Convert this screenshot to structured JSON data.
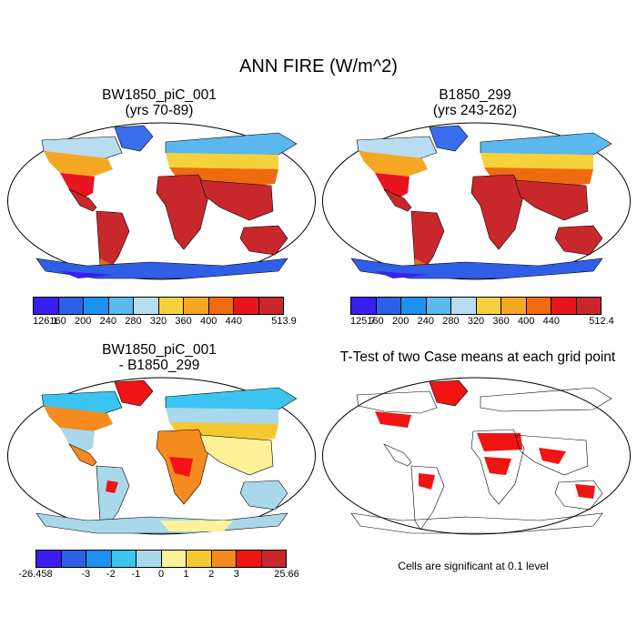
{
  "title": "ANN FIRE (W/m^2)",
  "panels": {
    "top_left": {
      "title_line1": "BW1850_piC_001",
      "title_line2": "(yrs 70-89)"
    },
    "top_right": {
      "title_line1": "B1850_299",
      "title_line2": "(yrs 243-262)"
    },
    "bottom_left": {
      "title_line1": "BW1850_piC_001",
      "title_line2": "- B1850_299"
    },
    "bottom_right": {
      "title_line1": "T-Test of two Case means at each grid point"
    }
  },
  "colorbars": {
    "top_left": {
      "colors": [
        "#3a1ef0",
        "#2f5fe6",
        "#1e90f0",
        "#5ab8ee",
        "#b8dcf0",
        "#f5d23c",
        "#f5a623",
        "#f06a10",
        "#e8141e",
        "#c8282c"
      ],
      "labels": [
        "126.1",
        "160",
        "200",
        "240",
        "280",
        "320",
        "360",
        "400",
        "440",
        "513.9"
      ]
    },
    "top_right": {
      "colors": [
        "#3a1ef0",
        "#2f5fe6",
        "#1e90f0",
        "#5ab8ee",
        "#b8dcf0",
        "#f5d23c",
        "#f5a623",
        "#f06a10",
        "#e8141e",
        "#c8282c"
      ],
      "labels": [
        "125.7",
        "160",
        "200",
        "240",
        "280",
        "320",
        "360",
        "400",
        "440",
        "512.4"
      ]
    },
    "bottom_left": {
      "colors": [
        "#3a1ef0",
        "#2f5fe6",
        "#1e90f0",
        "#3cc4f0",
        "#a8d8ea",
        "#fff09a",
        "#f5c830",
        "#f58a1e",
        "#f01414",
        "#c8282c"
      ],
      "labels": [
        "-26.458",
        "-3",
        "-2",
        "-1",
        "0",
        "1",
        "2",
        "3",
        "25.66"
      ]
    }
  },
  "note": "Cells are significant at 0.1 level"
}
